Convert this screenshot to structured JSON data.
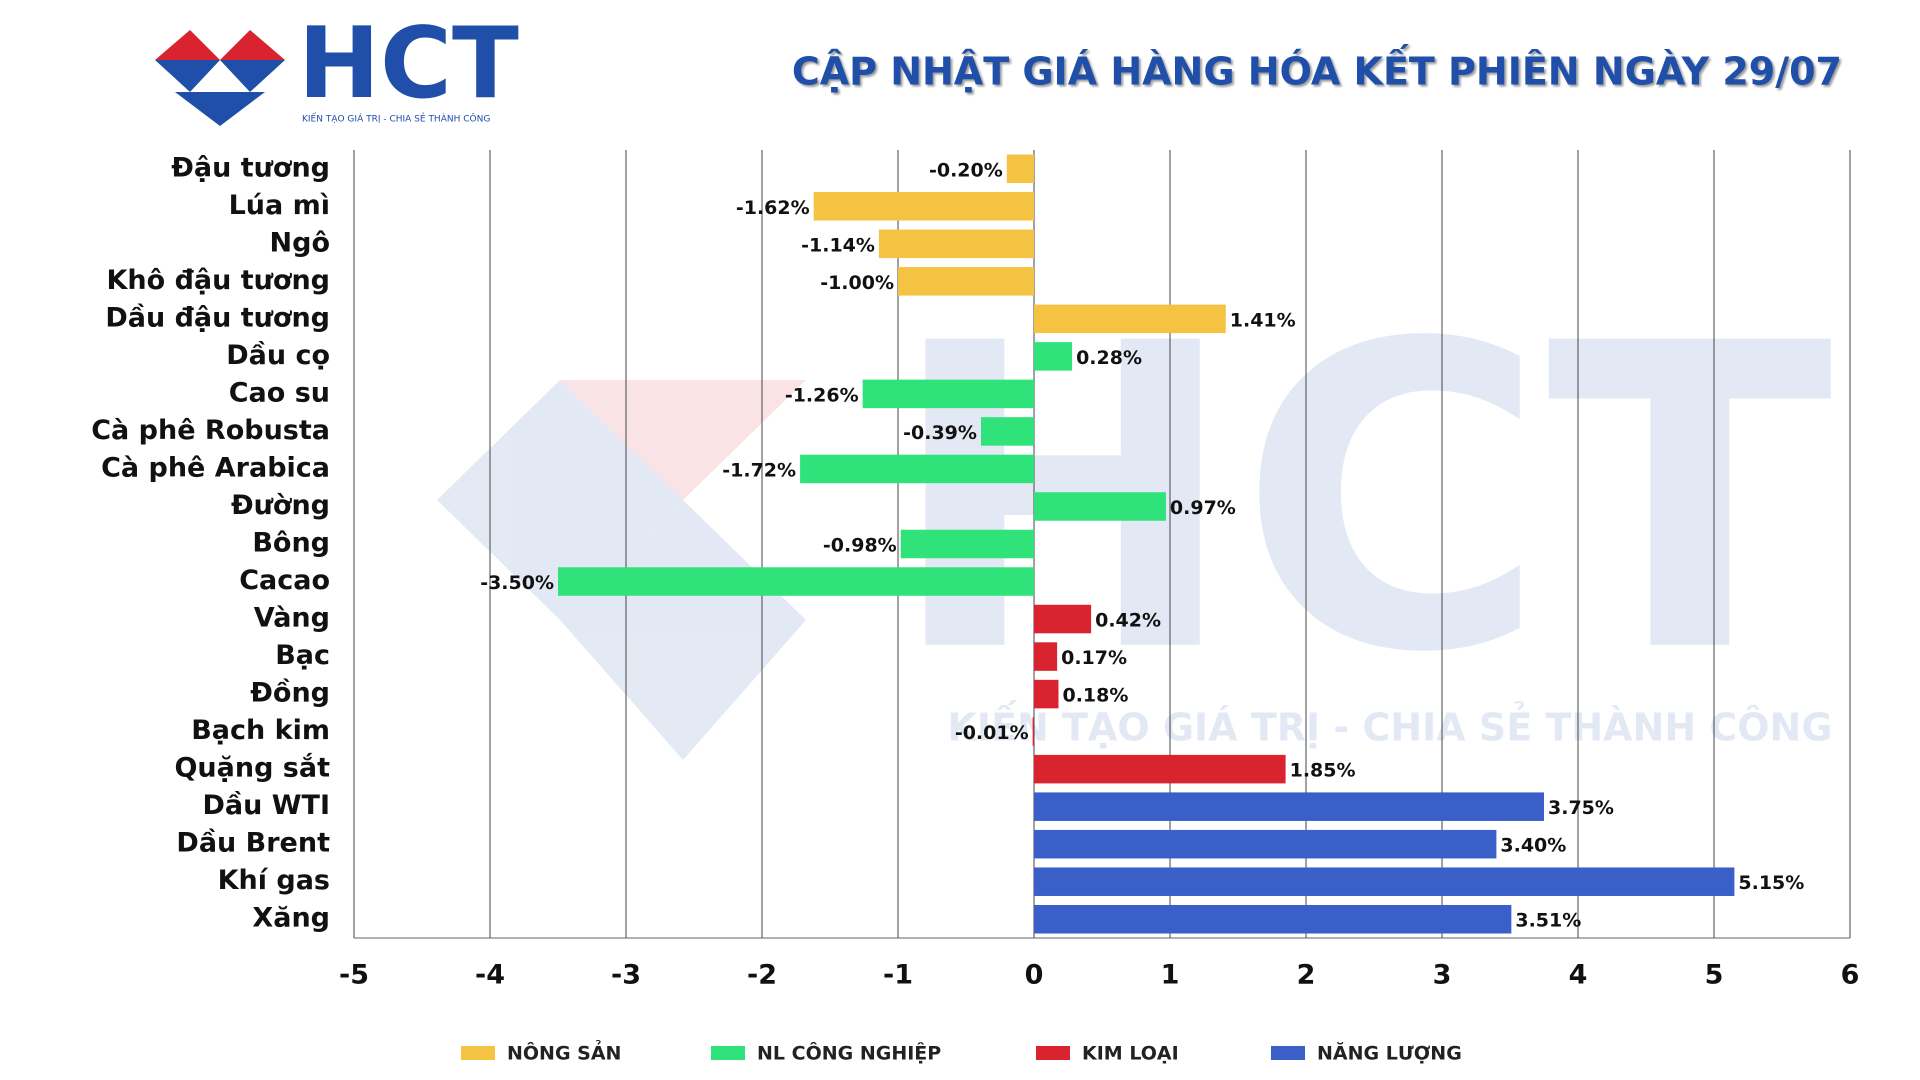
{
  "logo": {
    "text": "HCT",
    "tagline": "KIẾN TẠO GIÁ TRỊ - CHIA SẺ THÀNH CÔNG"
  },
  "watermark": {
    "text": "HCT",
    "tagline": "KIẾN TẠO GIÁ TRỊ - CHIA SẺ THÀNH CÔNG"
  },
  "chart_data": {
    "type": "bar",
    "orientation": "horizontal",
    "title": "CẬP NHẬT GIÁ HÀNG HÓA KẾT PHIÊN NGÀY 29/07",
    "categories": [
      "Đậu tương",
      "Lúa mì",
      "Ngô",
      "Khô đậu tương",
      "Dầu đậu tương",
      "Dầu cọ",
      "Cao su",
      "Cà phê Robusta",
      "Cà phê Arabica",
      "Đường",
      "Bông",
      "Cacao",
      "Vàng",
      "Bạc",
      "Đồng",
      "Bạch kim",
      "Quặng sắt",
      "Dầu WTI",
      "Dầu Brent",
      "Khí gas",
      "Xăng"
    ],
    "series": [
      {
        "name": "NÔNG SẢN",
        "color": "#f5c342",
        "values": [
          -0.2,
          -1.62,
          -1.14,
          -1.0,
          1.41,
          null,
          null,
          null,
          null,
          null,
          null,
          null,
          null,
          null,
          null,
          null,
          null,
          null,
          null,
          null,
          null
        ],
        "value_labels": [
          "-0.20%",
          "-1.62%",
          "-1.14%",
          "-1.00%",
          "1.41%",
          null,
          null,
          null,
          null,
          null,
          null,
          null,
          null,
          null,
          null,
          null,
          null,
          null,
          null,
          null,
          null
        ]
      },
      {
        "name": "NL CÔNG NGHIỆP",
        "color": "#2fe27a",
        "values": [
          null,
          null,
          null,
          null,
          null,
          0.28,
          -1.26,
          -0.39,
          -1.72,
          0.97,
          -0.98,
          -3.5,
          null,
          null,
          null,
          null,
          null,
          null,
          null,
          null,
          null
        ],
        "value_labels": [
          null,
          null,
          null,
          null,
          null,
          "0.28%",
          "-1.26%",
          "-0.39%",
          "-1.72%",
          "0.97%",
          "-0.98%",
          "-3.50%",
          null,
          null,
          null,
          null,
          null,
          null,
          null,
          null,
          null
        ]
      },
      {
        "name": "KIM LOẠI",
        "color": "#d9232e",
        "values": [
          null,
          null,
          null,
          null,
          null,
          null,
          null,
          null,
          null,
          null,
          null,
          null,
          0.42,
          0.17,
          0.18,
          -0.01,
          1.85,
          null,
          null,
          null,
          null
        ],
        "value_labels": [
          null,
          null,
          null,
          null,
          null,
          null,
          null,
          null,
          null,
          null,
          null,
          null,
          "0.42%",
          "0.17%",
          "0.18%",
          "-0.01%",
          "1.85%",
          null,
          null,
          null,
          null
        ]
      },
      {
        "name": "NĂNG LƯỢNG",
        "color": "#3a5fc8",
        "values": [
          null,
          null,
          null,
          null,
          null,
          null,
          null,
          null,
          null,
          null,
          null,
          null,
          null,
          null,
          null,
          null,
          null,
          3.75,
          3.4,
          5.15,
          3.51
        ],
        "value_labels": [
          null,
          null,
          null,
          null,
          null,
          null,
          null,
          null,
          null,
          null,
          null,
          null,
          null,
          null,
          null,
          null,
          null,
          "3.75%",
          "3.40%",
          "5.15%",
          "3.51%"
        ]
      }
    ],
    "xlim": [
      -5,
      6
    ],
    "xticks": [
      -5,
      -4,
      -3,
      -2,
      -1,
      0,
      1,
      2,
      3,
      4,
      5,
      6
    ],
    "grid": true,
    "legend": "bottom"
  }
}
